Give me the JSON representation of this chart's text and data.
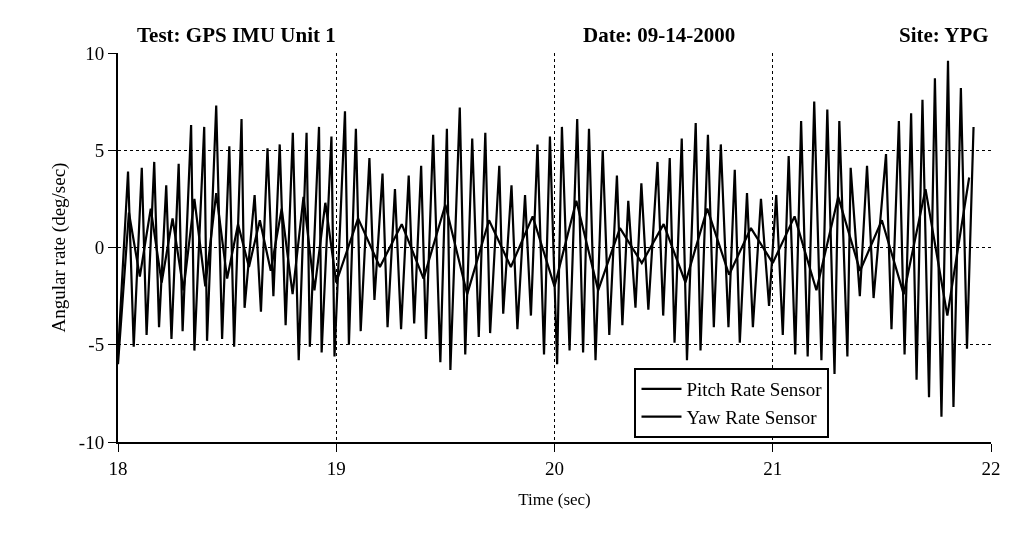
{
  "chart_data": {
    "type": "line",
    "title": "Test: GPS IMU Unit 1",
    "annotations": [
      "Date: 09-14-2000",
      "Site: YPG"
    ],
    "xlabel": "Time (sec)",
    "ylabel": "Angular rate (deg/sec)",
    "xlim": [
      18,
      22
    ],
    "xticks": [
      18,
      19,
      20,
      21,
      22
    ],
    "ylim": [
      -10,
      10
    ],
    "yticks": [
      -10,
      -5,
      0,
      5,
      10
    ],
    "grid": true,
    "legend": "bottom right",
    "marker": "none",
    "line_style": "solid",
    "series": [
      {
        "name": "Pitch Rate Sensor",
        "color": "#000000",
        "x": [
          18.0,
          18.046,
          18.072,
          18.109,
          18.131,
          18.166,
          18.188,
          18.221,
          18.245,
          18.278,
          18.296,
          18.335,
          18.35,
          18.395,
          18.408,
          18.45,
          18.477,
          18.51,
          18.532,
          18.566,
          18.58,
          18.626,
          18.655,
          18.685,
          18.712,
          18.741,
          18.768,
          18.801,
          18.828,
          18.864,
          18.879,
          18.921,
          18.933,
          18.978,
          18.992,
          19.04,
          19.058,
          19.09,
          19.112,
          19.152,
          19.175,
          19.212,
          19.235,
          19.269,
          19.297,
          19.332,
          19.357,
          19.389,
          19.411,
          19.444,
          19.477,
          19.507,
          19.523,
          19.566,
          19.591,
          19.623,
          19.653,
          19.683,
          19.705,
          19.747,
          19.765,
          19.803,
          19.83,
          19.865,
          19.892,
          19.922,
          19.952,
          19.979,
          20.012,
          20.034,
          20.069,
          20.104,
          20.131,
          20.158,
          20.188,
          20.221,
          20.251,
          20.286,
          20.311,
          20.338,
          20.371,
          20.398,
          20.43,
          20.472,
          20.498,
          20.528,
          20.55,
          20.583,
          20.607,
          20.647,
          20.669,
          20.703,
          20.73,
          20.762,
          20.797,
          20.826,
          20.849,
          20.882,
          20.909,
          20.946,
          20.983,
          21.016,
          21.046,
          21.073,
          21.103,
          21.13,
          21.16,
          21.19,
          21.223,
          21.25,
          21.283,
          21.305,
          21.342,
          21.357,
          21.399,
          21.432,
          21.462,
          21.519,
          21.544,
          21.578,
          21.604,
          21.634,
          21.659,
          21.686,
          21.716,
          21.743,
          21.773,
          21.803,
          21.828,
          21.862,
          21.89,
          21.92
        ],
        "values": [
          -5.5,
          3.9,
          -5.1,
          4.1,
          -4.5,
          4.4,
          -4.1,
          3.2,
          -4.7,
          4.3,
          -4.3,
          6.3,
          -5.3,
          6.2,
          -4.8,
          7.3,
          -4.7,
          5.2,
          -5.1,
          6.6,
          -3.1,
          2.7,
          -3.3,
          5.1,
          -2.5,
          5.3,
          -4.0,
          5.9,
          -5.8,
          5.9,
          -5.1,
          6.2,
          -5.4,
          5.7,
          -5.6,
          7.0,
          -5.0,
          6.1,
          -4.3,
          4.6,
          -2.7,
          3.8,
          -4.1,
          3.0,
          -4.2,
          3.7,
          -3.9,
          4.2,
          -4.7,
          5.8,
          -5.9,
          6.1,
          -6.3,
          7.2,
          -5.5,
          5.6,
          -4.6,
          5.9,
          -4.4,
          4.2,
          -3.4,
          3.2,
          -4.2,
          2.7,
          -3.5,
          5.3,
          -5.5,
          5.7,
          -6.0,
          6.2,
          -5.3,
          6.6,
          -5.4,
          6.1,
          -5.8,
          5.0,
          -4.5,
          3.7,
          -4.0,
          2.4,
          -3.1,
          3.3,
          -3.2,
          4.4,
          -3.5,
          4.6,
          -4.9,
          5.6,
          -5.8,
          6.4,
          -5.3,
          5.8,
          -4.1,
          5.3,
          -4.1,
          4.0,
          -4.9,
          2.8,
          -4.1,
          2.5,
          -3.0,
          2.7,
          -4.5,
          4.7,
          -5.5,
          6.5,
          -5.6,
          7.5,
          -5.8,
          7.1,
          -6.5,
          6.5,
          -5.6,
          4.1,
          -2.5,
          4.2,
          -2.6,
          4.8,
          -4.2,
          6.5,
          -5.5,
          6.9,
          -6.8,
          7.6,
          -7.7,
          8.7,
          -8.7,
          9.6,
          -8.2,
          8.2,
          -5.2,
          6.2
        ]
      },
      {
        "name": "Yaw Rate Sensor",
        "color": "#000000",
        "x": [
          18.0,
          18.05,
          18.1,
          18.15,
          18.2,
          18.25,
          18.3,
          18.35,
          18.4,
          18.45,
          18.5,
          18.55,
          18.6,
          18.65,
          18.7,
          18.75,
          18.8,
          18.85,
          18.9,
          18.95,
          19.0,
          19.1,
          19.2,
          19.3,
          19.4,
          19.5,
          19.6,
          19.7,
          19.8,
          19.9,
          20.0,
          20.1,
          20.2,
          20.3,
          20.4,
          20.5,
          20.6,
          20.7,
          20.8,
          20.9,
          21.0,
          21.1,
          21.2,
          21.3,
          21.4,
          21.5,
          21.6,
          21.7,
          21.8,
          21.9
        ],
        "values": [
          -6.0,
          1.8,
          -1.5,
          2.0,
          -1.8,
          1.5,
          -2.2,
          2.5,
          -2.0,
          2.8,
          -1.6,
          1.2,
          -1.0,
          1.4,
          -1.2,
          2.0,
          -2.4,
          2.6,
          -2.2,
          2.3,
          -1.8,
          1.5,
          -1.0,
          1.2,
          -1.6,
          2.2,
          -2.4,
          1.4,
          -1.0,
          1.6,
          -2.0,
          2.4,
          -2.2,
          1.0,
          -0.8,
          1.2,
          -1.8,
          2.0,
          -1.4,
          1.0,
          -0.8,
          1.6,
          -2.2,
          2.6,
          -1.2,
          1.4,
          -2.4,
          3.0,
          -3.5,
          3.6
        ]
      }
    ]
  }
}
